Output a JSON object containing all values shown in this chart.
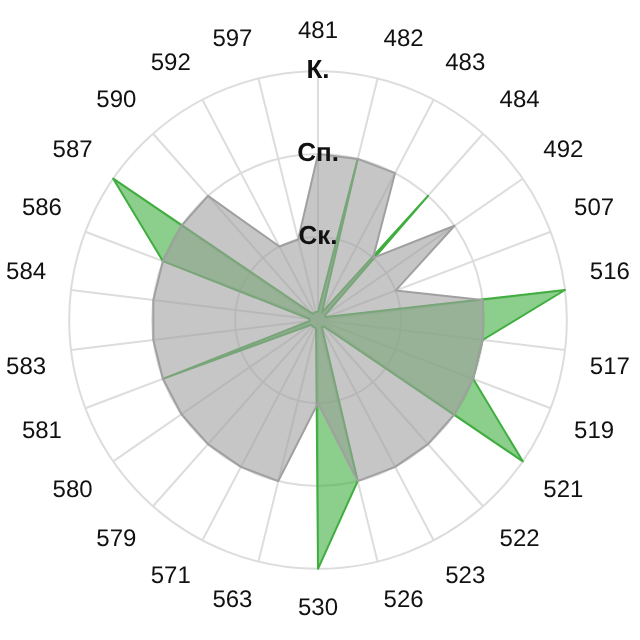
{
  "chart_data": {
    "type": "radar",
    "categories": [
      "481",
      "482",
      "483",
      "484",
      "492",
      "507",
      "516",
      "517",
      "519",
      "521",
      "522",
      "523",
      "526",
      "530",
      "563",
      "571",
      "579",
      "580",
      "581",
      "583",
      "584",
      "586",
      "587",
      "590",
      "592",
      "597"
    ],
    "series": [
      {
        "color": "#a0a0a0",
        "values": [
          2,
          2,
          2,
          1,
          2,
          1,
          2,
          2,
          2,
          2,
          2,
          2,
          2,
          1,
          2,
          2,
          2,
          2,
          2,
          2,
          2,
          2,
          2,
          2,
          1,
          1
        ]
      },
      {
        "color": "#3fae3f",
        "values": [
          0.1,
          2,
          0.1,
          2,
          0.1,
          0.1,
          3,
          2,
          2,
          3,
          0.1,
          0.1,
          2,
          3,
          0.1,
          0.1,
          0.1,
          0.1,
          2,
          0.1,
          0.1,
          2,
          3,
          0.1,
          0.1,
          0.1
        ]
      }
    ],
    "ylim": [
      0,
      3
    ],
    "yticks": [
      {
        "value": 1,
        "label": "Ск."
      },
      {
        "value": 2,
        "label": "Сп."
      },
      {
        "value": 3,
        "label": "К."
      }
    ],
    "grid": true,
    "legend": false,
    "marker": "none"
  }
}
